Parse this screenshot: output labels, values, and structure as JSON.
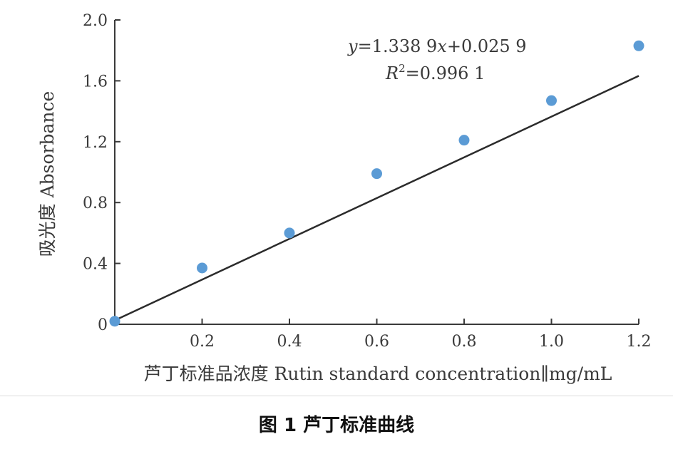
{
  "chart_data": {
    "type": "scatter",
    "x": [
      0,
      0.2,
      0.4,
      0.6,
      0.8,
      1.0,
      1.2
    ],
    "y": [
      0.02,
      0.37,
      0.6,
      0.99,
      1.21,
      1.47,
      1.83
    ],
    "fit": {
      "slope": 1.3389,
      "intercept": 0.0259,
      "x_range": [
        0,
        1.2
      ]
    },
    "xlim": [
      0,
      1.2
    ],
    "ylim": [
      0,
      2.0
    ],
    "x_ticks": [
      0.2,
      0.4,
      0.6,
      0.8,
      1.0,
      1.2
    ],
    "x_tick_labels": [
      "0.2",
      "0.4",
      "0.6",
      "0.8",
      "1.0",
      "1.2"
    ],
    "y_ticks": [
      0,
      0.4,
      0.8,
      1.2,
      1.6,
      2.0
    ],
    "y_tick_labels": [
      "0",
      "0.4",
      "0.8",
      "1.2",
      "1.6",
      "2.0"
    ],
    "xlabel": "芦丁标准品浓度 Rutin standard concentration∥mg/mL",
    "ylabel": "吸光度 Absorbance",
    "equation": {
      "y_var": "y",
      "eq_a": "=1.338 9",
      "x_var": "x",
      "eq_b": "+0.025 9",
      "r_var": "R",
      "r_sup": "2",
      "r_rest": "=0.996 1"
    },
    "point_color": "#5b9bd5",
    "line_color": "#2b2b2b",
    "axis_color": "#3a3a3a",
    "grid": false,
    "legend": "none"
  },
  "caption": "图 1    芦丁标准曲线"
}
